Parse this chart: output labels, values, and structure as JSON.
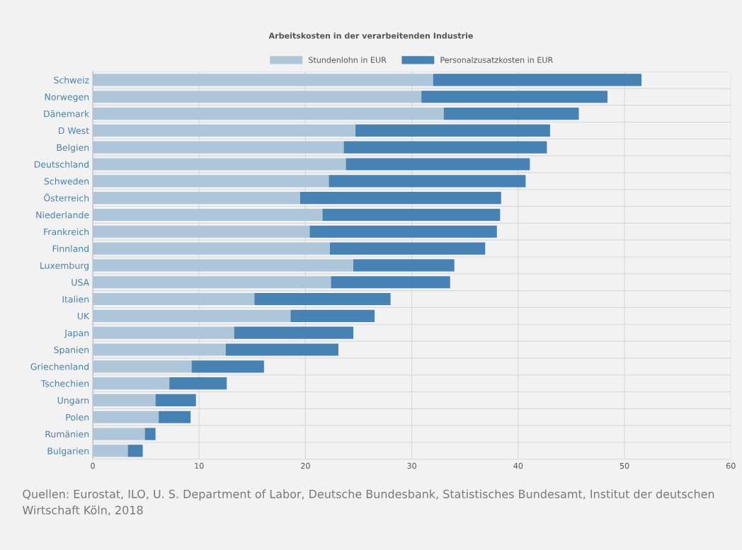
{
  "chart_data": {
    "type": "bar",
    "orientation": "horizontal",
    "stacked": true,
    "title": "Arbeitskosten in der verarbeitenden Industrie",
    "categories": [
      "Schweiz",
      "Norwegen",
      "Dänemark",
      "D West",
      "Belgien",
      "Deutschland",
      "Schweden",
      "Österreich",
      "Niederlande",
      "Frankreich",
      "Finnland",
      "Luxemburg",
      "USA",
      "Italien",
      "UK",
      "Japan",
      "Spanien",
      "Griechenland",
      "Tschechien",
      "Ungarn",
      "Polen",
      "Rumänien",
      "Bulgarien"
    ],
    "series": [
      {
        "name": "Stundenlohn in EUR",
        "color": "#aec6da",
        "values": [
          32.0,
          30.9,
          33.0,
          24.7,
          23.6,
          23.8,
          22.2,
          19.5,
          21.6,
          20.4,
          22.3,
          24.5,
          22.4,
          15.2,
          18.6,
          13.3,
          12.5,
          9.3,
          7.2,
          5.9,
          6.2,
          4.9,
          3.3
        ]
      },
      {
        "name": "Personalzusatzkosten in EUR",
        "color": "#4682b4",
        "values": [
          19.6,
          17.5,
          12.7,
          18.3,
          19.1,
          17.3,
          18.5,
          18.9,
          16.7,
          17.6,
          14.6,
          9.5,
          11.2,
          12.8,
          7.9,
          11.2,
          10.6,
          6.8,
          5.4,
          3.8,
          3.0,
          1.0,
          1.4
        ]
      }
    ],
    "xlim": [
      0,
      60
    ],
    "xticks": [
      0,
      10,
      20,
      30,
      40,
      50,
      60
    ],
    "grid": true,
    "legend": "top",
    "annotations": [
      "Quellen: Eurostat, ILO, U. S. Department of Labor, Deutsche Bundesbank, Statistisches Bundesamt, Institut der deutschen Wirtschaft Köln, 2018"
    ]
  }
}
